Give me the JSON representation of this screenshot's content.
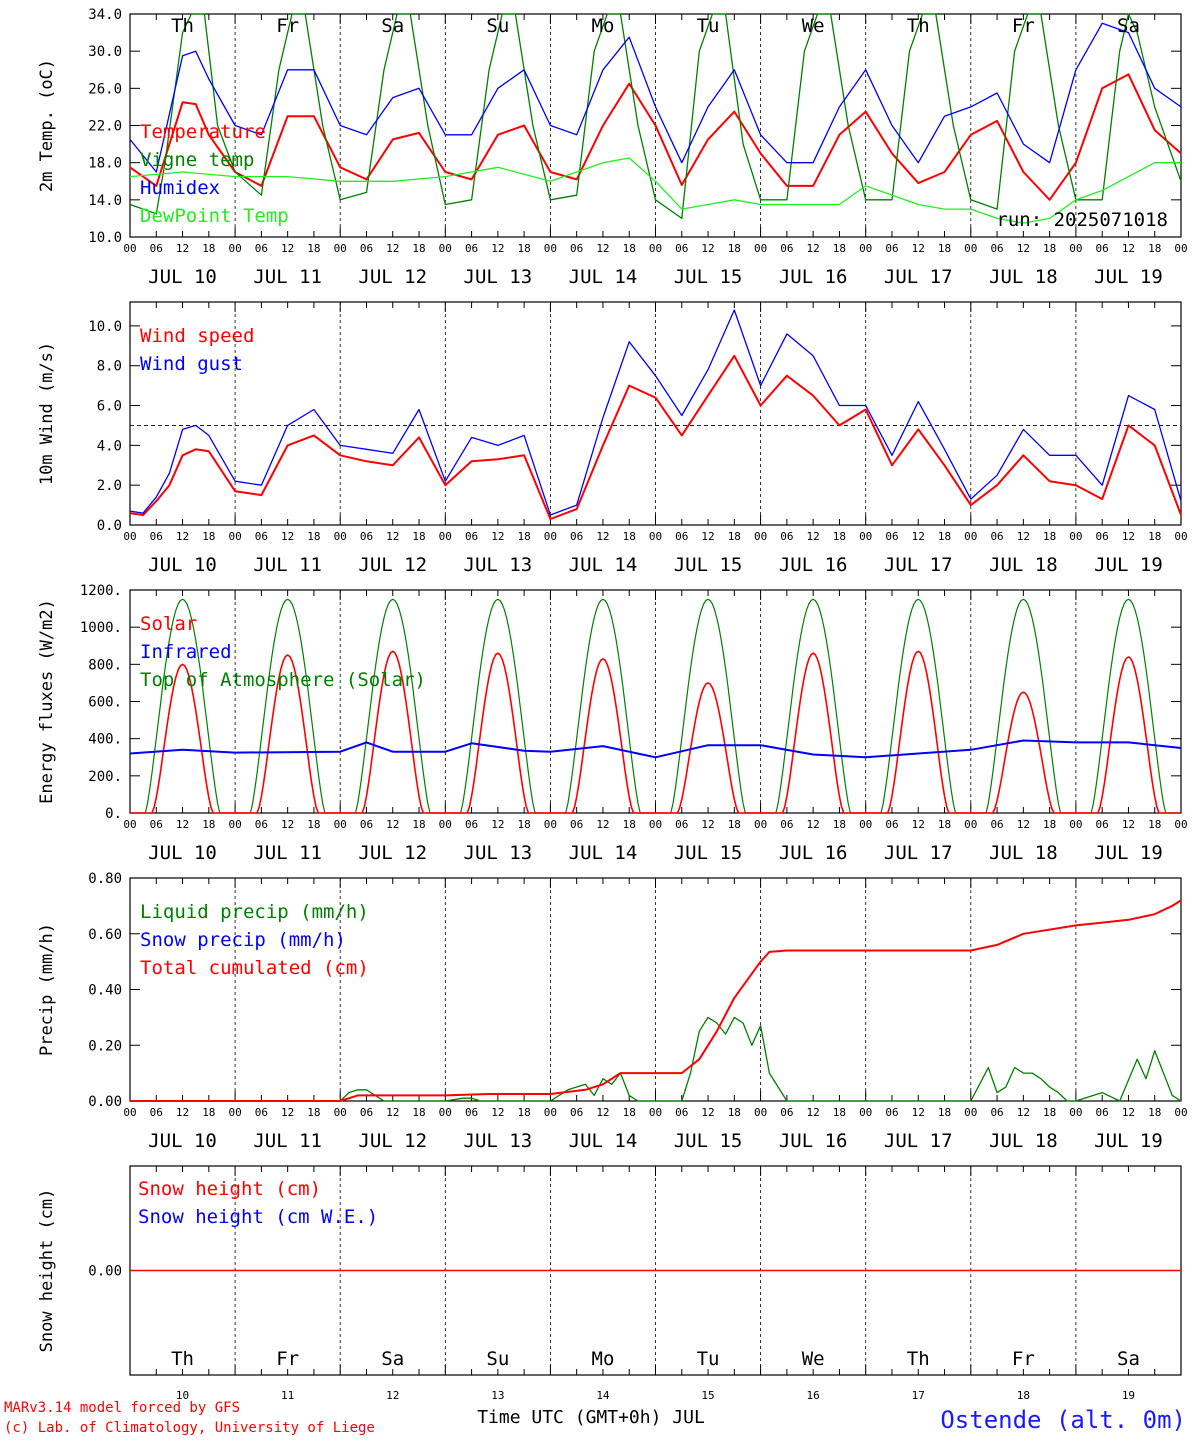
{
  "header": {
    "run_label": "run: 2025071018"
  },
  "footer": {
    "credit_line1": "MARv3.14 model forced by GFS",
    "credit_line2": "(c) Lab. of Climatology, University of Liege",
    "time_label": "Time UTC (GMT+0h) JUL",
    "station": "Ostende (alt. 0m)"
  },
  "days": {
    "weekdays": [
      "Th",
      "Fr",
      "Sa",
      "Su",
      "Mo",
      "Tu",
      "We",
      "Th",
      "Fr",
      "Sa"
    ],
    "weekend_flags": [
      false,
      false,
      true,
      true,
      false,
      false,
      false,
      false,
      false,
      true
    ],
    "dates": [
      "JUL 10",
      "JUL 11",
      "JUL 12",
      "JUL 13",
      "JUL 14",
      "JUL 15",
      "JUL 16",
      "JUL 17",
      "JUL 18",
      "JUL 19"
    ],
    "day_numbers": [
      "10",
      "11",
      "12",
      "13",
      "14",
      "15",
      "16",
      "17",
      "18",
      "19"
    ],
    "hour_ticks": [
      "00",
      "06",
      "12",
      "18"
    ],
    "final_hour": "00"
  },
  "colors": {
    "red": "#ff0000",
    "blue": "#0000ff",
    "green": "#008000",
    "lightgreen": "#22ee22",
    "black": "#000000"
  },
  "chart_data": [
    {
      "type": "line",
      "ylabel": "2m Temp. (oC)",
      "ylim": [
        10,
        34
      ],
      "yticks": [
        "10.0",
        "14.0",
        "18.0",
        "22.0",
        "26.0",
        "30.0",
        "34.0"
      ],
      "x_unit": "hours since JUL 10 00 UTC",
      "legend": [
        {
          "label": "Temperature",
          "color": "#ff0000"
        },
        {
          "label": "Vigne temp",
          "color": "#008000"
        },
        {
          "label": "Humidex",
          "color": "#0000ff"
        },
        {
          "label": "DewPoint Temp",
          "color": "#22ee22"
        }
      ],
      "series": [
        {
          "name": "Temperature",
          "color": "#ff0000",
          "width": 2,
          "x": [
            0,
            6,
            12,
            15,
            18,
            24,
            30,
            36,
            42,
            48,
            54,
            60,
            66,
            72,
            78,
            84,
            90,
            96,
            102,
            108,
            114,
            120,
            126,
            132,
            138,
            144,
            150,
            156,
            162,
            168,
            174,
            180,
            186,
            192,
            198,
            204,
            210,
            216,
            222,
            228,
            234,
            240
          ],
          "y": [
            17.5,
            15.5,
            24.5,
            24.3,
            21,
            17,
            15.5,
            23,
            23,
            17.5,
            16.2,
            20.5,
            21.2,
            17,
            16.2,
            21,
            22,
            17,
            16.2,
            22,
            26.5,
            22,
            15.6,
            20.5,
            23.5,
            19,
            15.5,
            15.5,
            21,
            23.5,
            19,
            15.8,
            17,
            21,
            22.5,
            17,
            14,
            18,
            26,
            27.5,
            21.5,
            19
          ]
        },
        {
          "name": "Vigne temp",
          "color": "#008000",
          "width": 1.3,
          "x": [
            0,
            6,
            8,
            12,
            14,
            17,
            20,
            24,
            30,
            34,
            37,
            40,
            44,
            48,
            54,
            58,
            61,
            64,
            68,
            72,
            78,
            82,
            85,
            88,
            92,
            96,
            102,
            106,
            109,
            112,
            116,
            120,
            126,
            130,
            133,
            136,
            140,
            144,
            150,
            154,
            157,
            160,
            164,
            168,
            174,
            178,
            181,
            184,
            188,
            192,
            198,
            202,
            205,
            208,
            212,
            216,
            222,
            226,
            228,
            230,
            234,
            240
          ],
          "y": [
            13.5,
            12.5,
            18,
            32,
            36,
            36,
            22,
            17,
            14.5,
            28,
            36,
            36,
            22,
            14,
            14.8,
            28,
            36,
            34,
            22,
            13.5,
            14,
            28,
            36,
            34,
            22,
            14,
            14.5,
            30,
            36,
            35,
            22,
            14,
            12,
            30,
            36,
            35,
            20,
            14,
            14,
            30,
            36,
            35,
            22,
            14,
            14,
            30,
            36,
            35,
            22,
            14,
            13,
            30,
            36,
            34,
            22,
            14,
            14,
            30,
            36,
            32,
            24,
            16
          ]
        },
        {
          "name": "Humidex",
          "color": "#0000ff",
          "width": 1.3,
          "x": [
            0,
            6,
            12,
            15,
            18,
            24,
            30,
            36,
            42,
            48,
            54,
            60,
            66,
            72,
            78,
            84,
            90,
            96,
            102,
            108,
            114,
            120,
            126,
            132,
            138,
            144,
            150,
            156,
            162,
            168,
            174,
            180,
            186,
            192,
            198,
            204,
            210,
            216,
            222,
            228,
            234,
            240
          ],
          "y": [
            20.5,
            17,
            29.5,
            30,
            27,
            22,
            21,
            28,
            28,
            22,
            21,
            25,
            26,
            21,
            21,
            26,
            28,
            22,
            21,
            28,
            31.5,
            24,
            18,
            24,
            28,
            21,
            18,
            18,
            24,
            28,
            22,
            18,
            23,
            24,
            25.5,
            20,
            18,
            28,
            33,
            32,
            26,
            24
          ]
        },
        {
          "name": "DewPoint Temp",
          "color": "#22ee22",
          "width": 1.3,
          "x": [
            0,
            12,
            24,
            36,
            48,
            60,
            72,
            84,
            96,
            108,
            114,
            120,
            126,
            132,
            138,
            144,
            156,
            162,
            168,
            180,
            186,
            192,
            198,
            204,
            210,
            216,
            222,
            228,
            234,
            240
          ],
          "y": [
            16.5,
            17,
            16.5,
            16.5,
            16,
            16,
            16.5,
            17.5,
            16,
            18,
            18.5,
            16,
            13,
            13.5,
            14,
            13.5,
            13.5,
            13.5,
            15.5,
            13.5,
            13,
            13,
            12,
            11.5,
            12,
            14,
            15,
            16.5,
            18,
            18
          ]
        }
      ]
    },
    {
      "type": "line",
      "ylabel": "10m Wind (m/s)",
      "ylim": [
        0,
        11.2
      ],
      "yticks": [
        "0.0",
        "2.0",
        "4.0",
        "6.0",
        "8.0",
        "10.0"
      ],
      "reference_line": 5,
      "legend": [
        {
          "label": "Wind speed",
          "color": "#ff0000"
        },
        {
          "label": "Wind gust",
          "color": "#0000ff"
        }
      ],
      "series": [
        {
          "name": "Wind speed",
          "color": "#ff0000",
          "width": 2,
          "x": [
            0,
            3,
            6,
            9,
            12,
            15,
            18,
            24,
            30,
            36,
            42,
            48,
            54,
            60,
            66,
            72,
            78,
            84,
            90,
            96,
            102,
            108,
            114,
            120,
            126,
            132,
            138,
            144,
            150,
            156,
            162,
            168,
            174,
            180,
            186,
            192,
            198,
            204,
            210,
            216,
            222,
            228,
            234,
            240
          ],
          "y": [
            0.6,
            0.5,
            1.2,
            2,
            3.5,
            3.8,
            3.7,
            1.7,
            1.5,
            4,
            4.5,
            3.5,
            3.2,
            3,
            4.4,
            2,
            3.2,
            3.3,
            3.5,
            0.3,
            0.8,
            4,
            7,
            6.4,
            4.5,
            6.5,
            8.5,
            6,
            7.5,
            6.5,
            5,
            5.8,
            3,
            4.8,
            3,
            1,
            2,
            3.5,
            2.2,
            2,
            1.3,
            5,
            4,
            0.5
          ]
        },
        {
          "name": "Wind gust",
          "color": "#0000ff",
          "width": 1.3,
          "x": [
            0,
            3,
            6,
            9,
            12,
            15,
            18,
            24,
            30,
            36,
            42,
            48,
            54,
            60,
            66,
            72,
            78,
            84,
            90,
            96,
            102,
            108,
            114,
            120,
            126,
            132,
            138,
            144,
            150,
            156,
            162,
            168,
            174,
            180,
            186,
            192,
            198,
            204,
            210,
            216,
            222,
            228,
            234,
            240
          ],
          "y": [
            0.7,
            0.6,
            1.4,
            2.6,
            4.8,
            5,
            4.5,
            2.2,
            2,
            5,
            5.8,
            4,
            3.8,
            3.6,
            5.8,
            2.2,
            4.4,
            4,
            4.5,
            0.5,
            1,
            5.4,
            9.2,
            7.5,
            5.5,
            7.8,
            10.8,
            7,
            9.6,
            8.5,
            6,
            6,
            3.5,
            6.2,
            3.8,
            1.3,
            2.5,
            4.8,
            3.5,
            3.5,
            2,
            6.5,
            5.8,
            1.2
          ]
        }
      ]
    },
    {
      "type": "line",
      "ylabel": "Energy fluxes (W/m2)",
      "ylim": [
        0,
        1200
      ],
      "yticks": [
        "0.",
        "200.",
        "400.",
        "600.",
        "800.",
        "1000.",
        "1200."
      ],
      "legend": [
        {
          "label": "Solar",
          "color": "#ff0000"
        },
        {
          "label": "Infrared",
          "color": "#0000ff"
        },
        {
          "label": "Top of Atmosphere (Solar)",
          "color": "#008000"
        }
      ],
      "toa_peak": 1150,
      "solar_peaks": [
        800,
        850,
        870,
        860,
        830,
        700,
        860,
        870,
        650,
        840
      ],
      "series": [
        {
          "name": "Infrared",
          "color": "#0000ff",
          "width": 2,
          "x": [
            0,
            12,
            24,
            48,
            54,
            60,
            72,
            78,
            90,
            96,
            108,
            120,
            132,
            144,
            156,
            168,
            180,
            192,
            204,
            216,
            228,
            240
          ],
          "y": [
            320,
            340,
            325,
            330,
            380,
            330,
            330,
            375,
            335,
            330,
            360,
            300,
            365,
            365,
            315,
            300,
            320,
            340,
            390,
            380,
            380,
            350
          ]
        }
      ]
    },
    {
      "type": "line",
      "ylabel": "Precip (mm/h)",
      "ylim": [
        0,
        0.8
      ],
      "yticks": [
        "0.00",
        "0.20",
        "0.40",
        "0.60",
        "0.80"
      ],
      "legend": [
        {
          "label": "Liquid precip (mm/h)",
          "color": "#008000"
        },
        {
          "label": "Snow precip (mm/h)",
          "color": "#0000ff"
        },
        {
          "label": "Total cumulated (cm)",
          "color": "#ff0000"
        }
      ],
      "series": [
        {
          "name": "Liquid precip (mm/h)",
          "color": "#008000",
          "width": 1.3,
          "x": [
            0,
            48,
            50,
            52,
            54,
            56,
            58,
            60,
            72,
            76,
            78,
            80,
            82,
            96,
            100,
            104,
            106,
            108,
            110,
            112,
            114,
            116,
            120,
            126,
            128,
            130,
            132,
            134,
            136,
            138,
            140,
            142,
            144,
            146,
            150,
            192,
            194,
            196,
            198,
            200,
            202,
            204,
            206,
            208,
            210,
            212,
            214,
            216,
            220,
            222,
            226,
            230,
            232,
            234,
            236,
            238,
            240
          ],
          "y": [
            0,
            0,
            0.03,
            0.04,
            0.04,
            0.02,
            0,
            0,
            0,
            0.01,
            0.01,
            0,
            0,
            0,
            0.04,
            0.06,
            0.02,
            0.08,
            0.06,
            0.1,
            0.02,
            0,
            0,
            0,
            0.1,
            0.25,
            0.3,
            0.28,
            0.24,
            0.3,
            0.28,
            0.2,
            0.27,
            0.1,
            0,
            0,
            0.06,
            0.12,
            0.03,
            0.05,
            0.12,
            0.1,
            0.1,
            0.08,
            0.05,
            0.03,
            0,
            0,
            0.02,
            0.03,
            0,
            0.15,
            0.08,
            0.18,
            0.1,
            0.02,
            0
          ]
        },
        {
          "name": "Total cumulated (cm)",
          "color": "#ff0000",
          "width": 2,
          "x": [
            0,
            48,
            52,
            54,
            72,
            82,
            96,
            104,
            108,
            112,
            126,
            130,
            134,
            138,
            144,
            146,
            150,
            192,
            198,
            204,
            216,
            222,
            228,
            234,
            238,
            240
          ],
          "y": [
            0,
            0,
            0.02,
            0.02,
            0.02,
            0.025,
            0.025,
            0.04,
            0.06,
            0.1,
            0.1,
            0.15,
            0.25,
            0.37,
            0.5,
            0.535,
            0.54,
            0.54,
            0.56,
            0.6,
            0.63,
            0.64,
            0.65,
            0.67,
            0.7,
            0.72
          ]
        }
      ]
    },
    {
      "type": "line",
      "ylabel": "Snow height (cm)",
      "ylim": [
        -1,
        1
      ],
      "yticks": [
        "0.00"
      ],
      "legend": [
        {
          "label": "Snow height (cm)",
          "color": "#ff0000"
        },
        {
          "label": "Snow height (cm W.E.)",
          "color": "#0000ff"
        }
      ],
      "series": [
        {
          "name": "Snow height (cm)",
          "color": "#ff0000",
          "width": 1.5,
          "x": [
            0,
            240
          ],
          "y": [
            0,
            0
          ]
        }
      ]
    }
  ]
}
